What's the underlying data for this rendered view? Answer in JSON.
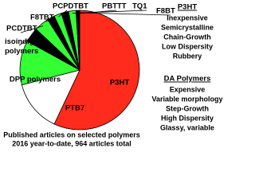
{
  "chart_data": {
    "type": "pie",
    "categories": [
      "P3HT",
      "PTB7",
      "DPP polymers",
      "isoindigo polymers",
      "PCDTBT",
      "F8TBT",
      "PCPDTBT",
      "PBTTT",
      "TQ1",
      "F8BT"
    ],
    "values": [
      57,
      14,
      12,
      4,
      4,
      2,
      2,
      2,
      2,
      1
    ],
    "colors": [
      "#ff2b1c",
      "#ffffff",
      "#33ff33",
      "#000000",
      "#33ff33",
      "#000000",
      "#33ff33",
      "#000000",
      "#33ff33",
      "#000000"
    ],
    "caption": [
      "Published articles on selected polymers",
      "2016 year-to-date, 964 articles total"
    ],
    "panels": [
      {
        "title": "P3HT",
        "items": [
          "Inexpensive",
          "Semicrystalline",
          "Chain-Growth",
          "Low Dispersity",
          "Rubbery"
        ]
      },
      {
        "title": "DA Polymers",
        "items": [
          "Expensive",
          "Variable morphology",
          "Step-Growth",
          "High Dispersity",
          "Glassy, variable"
        ]
      }
    ]
  }
}
